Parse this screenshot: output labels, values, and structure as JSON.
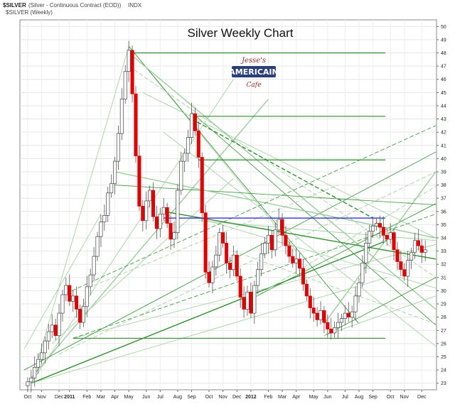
{
  "header": {
    "symbol": "$SILVER",
    "description": "(Silver - Continuous Contract (EOD))",
    "exchange": "INDX",
    "legend": "$SILVER (Weekly)"
  },
  "logo": {
    "line1": "Jesse's",
    "line2": "AMERICAIN",
    "line3": "Cafe"
  },
  "chart_data": {
    "type": "candlestick",
    "title": "Silver Weekly Chart",
    "ylim": [
      22.5,
      50.5
    ],
    "y_ticks": [
      23,
      24,
      25,
      26,
      27,
      28,
      29,
      30,
      31,
      32,
      33,
      34,
      35,
      36,
      37,
      38,
      39,
      40,
      41,
      42,
      43,
      44,
      45,
      46,
      47,
      48,
      49,
      50
    ],
    "x_ticks": [
      "Oct",
      "Nov",
      "Dec",
      "2011",
      "Feb",
      "Mar",
      "Apr",
      "May",
      "Jun",
      "Jul",
      "Aug",
      "Sep",
      "Oct",
      "Nov",
      "Dec",
      "2012",
      "Feb",
      "Mar",
      "Apr",
      "May",
      "Jun",
      "Jul",
      "Aug",
      "Sep",
      "Oct",
      "Nov",
      "Dec"
    ],
    "x_tick_weeks": [
      1,
      5,
      10,
      13,
      18,
      22,
      26,
      30,
      35,
      39,
      44,
      48,
      53,
      57,
      61,
      65,
      70,
      74,
      78,
      83,
      87,
      92,
      96,
      100,
      105,
      109,
      114
    ],
    "grid": true,
    "up_color": "#ffffff",
    "down_color": "#e00000",
    "wick_color": "#555555",
    "horizontal_levels": [
      {
        "y": 48.0,
        "color": "#2e8b2e"
      },
      {
        "y": 43.2,
        "color": "#2e8b2e"
      },
      {
        "y": 39.9,
        "color": "#2e8b2e"
      },
      {
        "y": 35.5,
        "color": "#2020c8"
      },
      {
        "y": 26.4,
        "color": "#2e8b2e"
      }
    ],
    "weekly_closes": [
      23.1,
      23.4,
      24.2,
      24.8,
      25.3,
      26.2,
      26.9,
      27.4,
      26.6,
      28.3,
      29.7,
      30.4,
      29.2,
      29.6,
      28.6,
      27.6,
      28.8,
      30.3,
      31.2,
      32.6,
      34.1,
      35.2,
      35.7,
      37.4,
      38.1,
      39.8,
      41.9,
      44.5,
      46.6,
      48.2,
      44.9,
      40.2,
      36.4,
      35.3,
      36.8,
      37.6,
      35.6,
      34.7,
      35.8,
      36.3,
      35.1,
      33.9,
      34.4,
      37.6,
      39.8,
      40.4,
      41.6,
      43.4,
      42.1,
      40.1,
      35.9,
      31.4,
      30.6,
      31.8,
      32.7,
      34.4,
      33.6,
      32.1,
      31.6,
      32.7,
      31.1,
      29.5,
      28.6,
      29.9,
      28.3,
      30.4,
      31.6,
      32.8,
      33.6,
      34.2,
      33.1,
      34.6,
      35.4,
      34.2,
      33.4,
      32.6,
      32.1,
      32.4,
      31.7,
      30.5,
      29.6,
      28.7,
      28.3,
      27.8,
      28.5,
      27.6,
      27.1,
      26.8,
      27.2,
      27.6,
      27.9,
      28.3,
      28.0,
      28.4,
      29.6,
      30.6,
      32.1,
      33.6,
      34.5,
      34.9,
      35.1,
      34.8,
      34.2,
      33.9,
      34.4,
      33.1,
      32.2,
      31.6,
      31.1,
      32.3,
      32.9,
      33.8,
      33.4,
      32.9,
      33.1
    ]
  }
}
